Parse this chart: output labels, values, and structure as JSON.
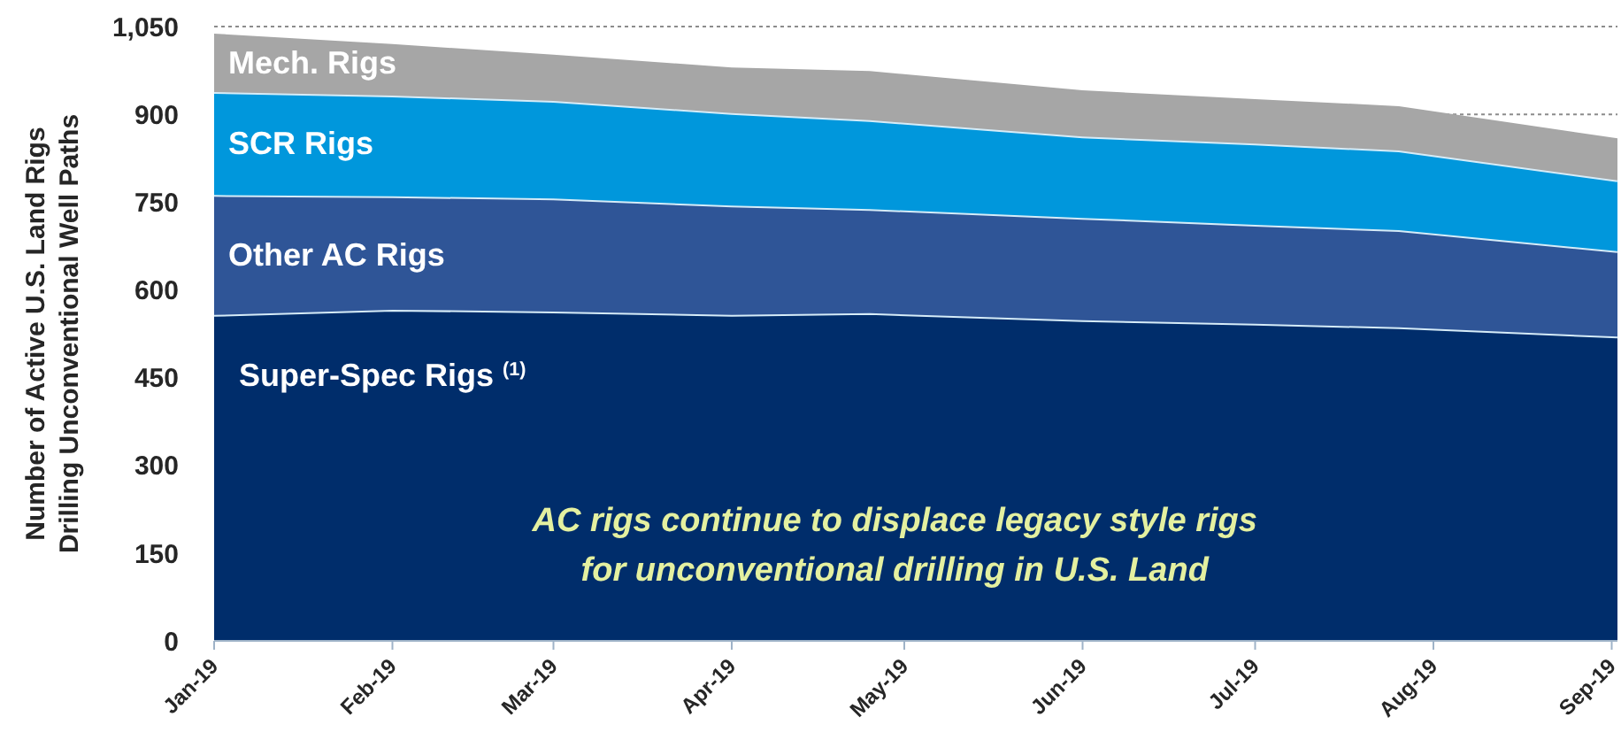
{
  "chart_data": {
    "type": "area",
    "stacked": true,
    "ylabel": "Number of Active U.S. Land Rigs\nDrilling Unconventional Well Paths",
    "x": [
      "2019-01-01",
      "2019-02-01",
      "2019-03-01",
      "2019-04-01",
      "2019-04-25",
      "2019-06-01",
      "2019-07-01",
      "2019-07-26",
      "2019-09-02"
    ],
    "series": [
      {
        "name": "Super-Spec Rigs $^{(1)}$",
        "color": "#002d6b",
        "values": [
          557,
          566,
          563,
          557,
          560,
          548,
          542,
          536,
          520
        ]
      },
      {
        "name": "Other AC Rigs",
        "color": "#2f5597",
        "values": [
          205,
          194,
          193,
          187,
          178,
          175,
          169,
          166,
          146
        ]
      },
      {
        "name": "SCR Rigs",
        "color": "#0097dc",
        "values": [
          176,
          172,
          167,
          158,
          152,
          139,
          139,
          136,
          121
        ]
      },
      {
        "name": "Mech. Rigs",
        "color": "#a6a6a6",
        "values": [
          100,
          88,
          79,
          78,
          84,
          79,
          76,
          76,
          72
        ]
      }
    ],
    "xlim": [
      "2019-01-01",
      "2019-09-02"
    ],
    "xticks": [
      {
        "value": "2019-01-01",
        "label": "Jan-19"
      },
      {
        "value": "2019-02-01",
        "label": "Feb-19"
      },
      {
        "value": "2019-03-01",
        "label": "Mar-19"
      },
      {
        "value": "2019-04-01",
        "label": "Apr-19"
      },
      {
        "value": "2019-05-01",
        "label": "May-19"
      },
      {
        "value": "2019-06-01",
        "label": "Jun-19"
      },
      {
        "value": "2019-07-01",
        "label": "Jul-19"
      },
      {
        "value": "2019-08-01",
        "label": "Aug-19"
      },
      {
        "value": "2019-09-01",
        "label": "Sep-19"
      }
    ],
    "ylim": [
      0,
      1050
    ],
    "yticks": [
      0,
      150,
      300,
      450,
      600,
      750,
      900,
      {
        "value": 1050,
        "label": "1,050"
      }
    ],
    "grid": "y",
    "annotations": [
      "AC rigs continue to displace legacy style rigs\nfor unconventional drilling in U.S. Land"
    ]
  }
}
